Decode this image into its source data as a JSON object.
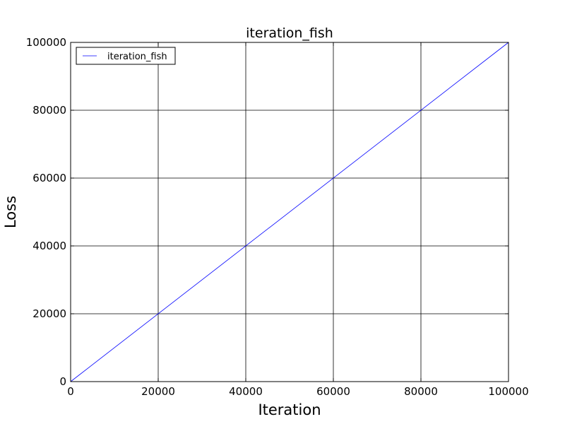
{
  "chart_data": {
    "type": "line",
    "title": "iteration_fish",
    "xlabel": "Iteration",
    "ylabel": "Loss",
    "xlim": [
      0,
      100000
    ],
    "ylim": [
      0,
      100000
    ],
    "xticks": [
      "0",
      "20000",
      "40000",
      "60000",
      "80000",
      "100000"
    ],
    "yticks": [
      "0",
      "20000",
      "40000",
      "60000",
      "80000",
      "100000"
    ],
    "grid": true,
    "legend_position": "top-left",
    "series": [
      {
        "name": "iteration_fish",
        "color": "#0000ff",
        "x": [
          0,
          100000
        ],
        "y": [
          0,
          100000
        ]
      }
    ]
  }
}
